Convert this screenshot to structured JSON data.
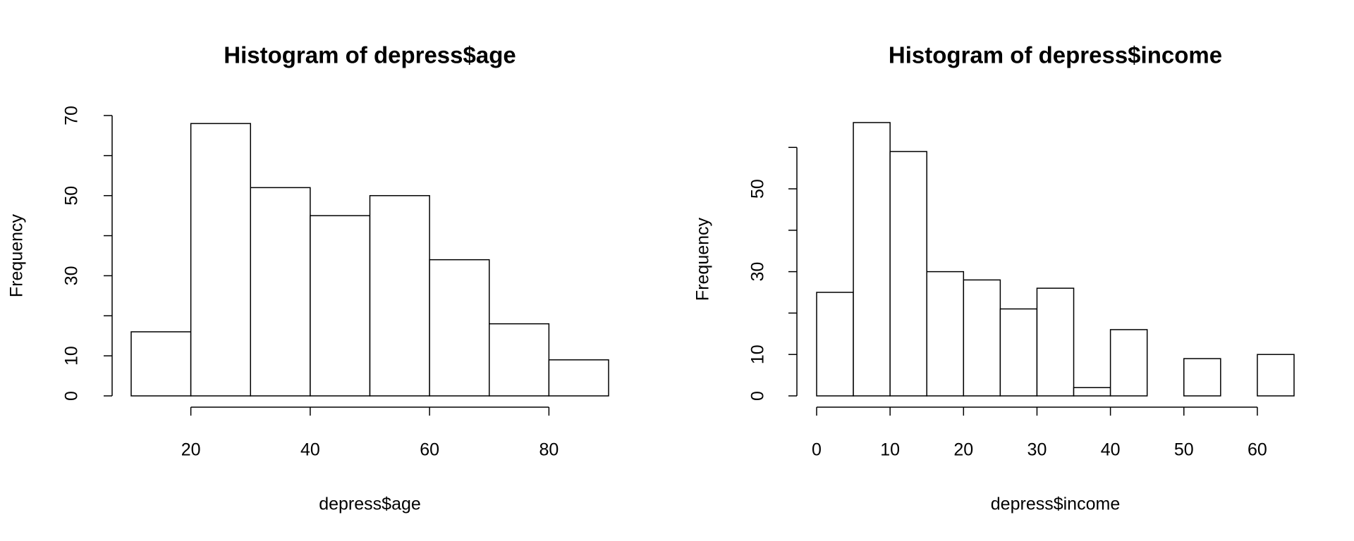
{
  "chart_data": [
    {
      "type": "histogram",
      "title": "Histogram of depress$age",
      "x_label": "depress$age",
      "y_label": "Frequency",
      "bins": [
        10,
        20,
        30,
        40,
        50,
        60,
        70,
        80,
        90
      ],
      "values": [
        16,
        68,
        52,
        45,
        50,
        34,
        18,
        9
      ],
      "color": "#ffffff",
      "edge_color": "#000000",
      "xlim": [
        10,
        90
      ],
      "xticks": [
        20,
        40,
        60,
        80
      ],
      "ylim": [
        0,
        70
      ],
      "yticks": [
        0,
        10,
        {
          "value": 20,
          "label": null
        },
        30,
        {
          "value": 40,
          "label": null
        },
        50,
        {
          "value": 60,
          "label": null
        },
        70
      ]
    },
    {
      "type": "histogram",
      "title": "Histogram of depress$income",
      "x_label": "depress$income",
      "y_label": "Frequency",
      "bins": [
        0,
        5,
        10,
        15,
        20,
        25,
        30,
        35,
        40,
        45,
        50,
        55,
        60,
        65
      ],
      "values": [
        25,
        66,
        59,
        30,
        28,
        21,
        26,
        2,
        16,
        0,
        9,
        0,
        10
      ],
      "color": "#ffffff",
      "edge_color": "#000000",
      "xlim": [
        0,
        65
      ],
      "xticks": [
        0,
        10,
        20,
        30,
        40,
        50,
        60
      ],
      "ylim": [
        0,
        66
      ],
      "yticks": [
        0,
        10,
        {
          "value": 20,
          "label": null
        },
        30,
        {
          "value": 40,
          "label": null
        },
        50,
        {
          "value": 60,
          "label": null
        }
      ]
    }
  ]
}
